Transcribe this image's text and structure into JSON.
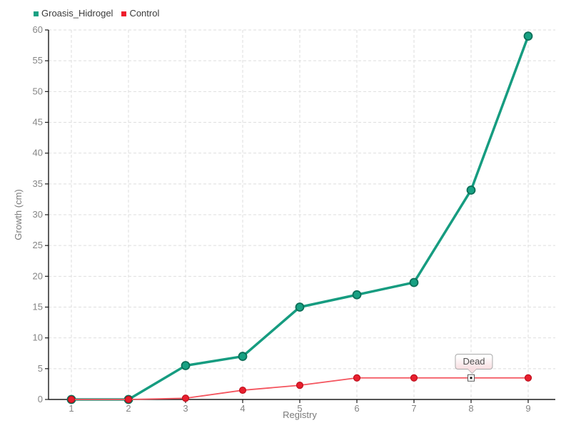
{
  "legend": {
    "items": [
      {
        "label": "Groasis_Hidrogel",
        "color": "#18a183"
      },
      {
        "label": "Control",
        "color": "#ee1c2c"
      }
    ]
  },
  "chart_data": {
    "type": "line",
    "x": [
      1,
      2,
      3,
      4,
      5,
      6,
      7,
      8,
      9
    ],
    "series": [
      {
        "name": "Groasis_Hidrogel",
        "values": [
          0,
          0,
          5.5,
          7,
          15,
          17,
          19,
          34,
          59
        ],
        "line_color": "#169c80",
        "marker_fill": "#18a183",
        "marker_stroke": "#0c6f58",
        "line_width": 3.5,
        "marker_radius": 5.5,
        "marker": "circle"
      },
      {
        "name": "Control",
        "values": [
          0,
          0,
          0.2,
          1.5,
          2.3,
          3.5,
          3.5,
          3.5,
          3.5
        ],
        "line_color": "#f4545e",
        "marker_fill": "#e81f2e",
        "marker_stroke": "#bf101e",
        "line_width": 1.8,
        "marker_radius": 4.5,
        "marker": "circle"
      }
    ],
    "xlabel": "Registry",
    "ylabel": "Growth (cm)",
    "xlim": [
      1,
      9
    ],
    "ylim": [
      0,
      60
    ],
    "ytick_step": 5,
    "xticks": [
      "1",
      "2",
      "3",
      "4",
      "5",
      "6",
      "7",
      "8",
      "9"
    ],
    "yticks": [
      "0",
      "5",
      "10",
      "15",
      "20",
      "25",
      "30",
      "35",
      "40",
      "45",
      "50",
      "55",
      "60"
    ],
    "grid": true,
    "grid_style": "dashed",
    "legend_position": "top-left",
    "annotation": {
      "text": "Dead",
      "series": "Control",
      "x": 8,
      "y": 3.5,
      "marker": "square-open"
    }
  },
  "style": {
    "grid_color": "#dedede",
    "axis_color": "#1b1b1b",
    "tick_label_color": "#858585",
    "axis_title_color": "#7a7a7a",
    "background": "#ffffff"
  }
}
